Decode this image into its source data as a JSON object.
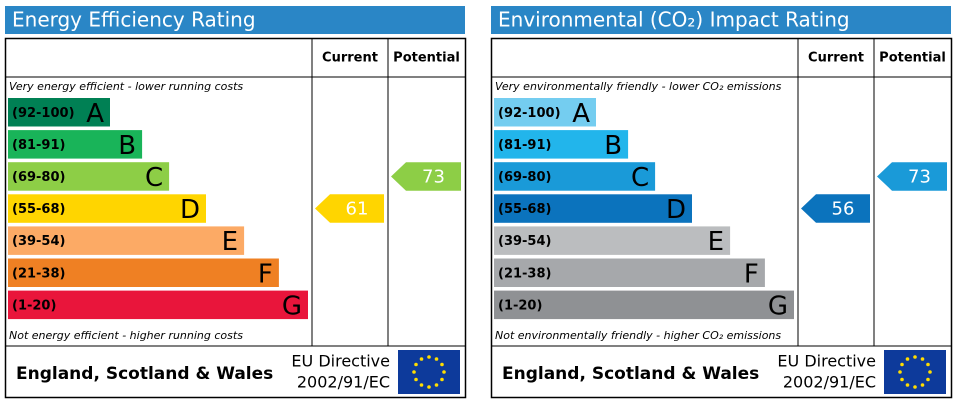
{
  "chart_data": [
    {
      "type": "rating",
      "title": "Energy Efficiency Rating",
      "columns": [
        "Current",
        "Potential"
      ],
      "top_note": "Very energy efficient - lower running costs",
      "bottom_note": "Not energy efficient - higher running costs",
      "bands": [
        {
          "range": "(92-100)",
          "letter": "A",
          "color": "#008054"
        },
        {
          "range": "(81-91)",
          "letter": "B",
          "color": "#19b459"
        },
        {
          "range": "(69-80)",
          "letter": "C",
          "color": "#8dce46"
        },
        {
          "range": "(55-68)",
          "letter": "D",
          "color": "#ffd500"
        },
        {
          "range": "(39-54)",
          "letter": "E",
          "color": "#fcaa65"
        },
        {
          "range": "(21-38)",
          "letter": "F",
          "color": "#ef8023"
        },
        {
          "range": "(1-20)",
          "letter": "G",
          "color": "#e9153b"
        }
      ],
      "current": 61,
      "potential": 73,
      "region": "England, Scotland & Wales",
      "directive": "EU Directive",
      "directive_code": "2002/91/EC"
    },
    {
      "type": "rating",
      "title": "Environmental (CO₂) Impact Rating",
      "columns": [
        "Current",
        "Potential"
      ],
      "top_note": "Very environmentally friendly - lower CO₂ emissions",
      "bottom_note": "Not environmentally friendly - higher CO₂ emissions",
      "bands": [
        {
          "range": "(92-100)",
          "letter": "A",
          "color": "#74cdf0"
        },
        {
          "range": "(81-91)",
          "letter": "B",
          "color": "#22b5eb"
        },
        {
          "range": "(69-80)",
          "letter": "C",
          "color": "#1a9ad8"
        },
        {
          "range": "(55-68)",
          "letter": "D",
          "color": "#0b73bd"
        },
        {
          "range": "(39-54)",
          "letter": "E",
          "color": "#bbbdbf"
        },
        {
          "range": "(21-38)",
          "letter": "F",
          "color": "#a6a8ab"
        },
        {
          "range": "(1-20)",
          "letter": "G",
          "color": "#8f9194"
        }
      ],
      "current": 56,
      "potential": 73,
      "region": "England, Scotland & Wales",
      "directive": "EU Directive",
      "directive_code": "2002/91/EC"
    }
  ]
}
